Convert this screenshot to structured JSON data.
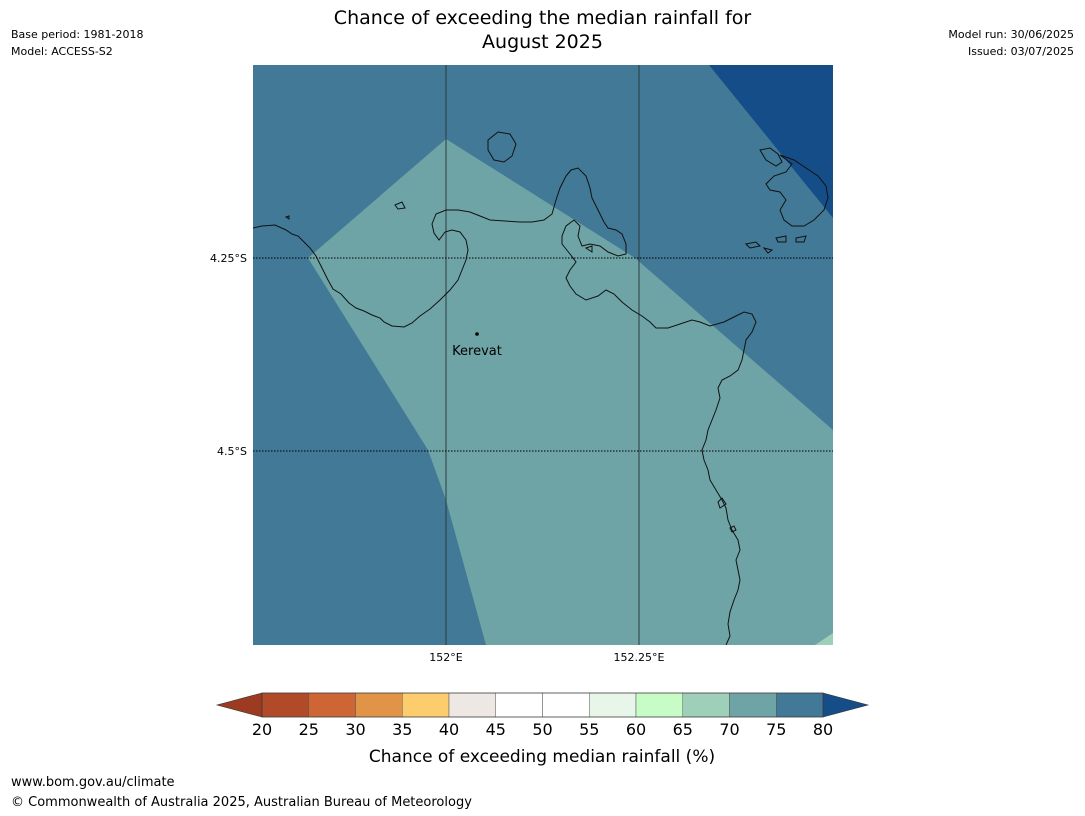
{
  "title_line1": "Chance of exceeding the median rainfall for",
  "title_line2": "August 2025",
  "meta_left": [
    "Base period: 1981-2018",
    "Model: ACCESS-S2"
  ],
  "meta_right": [
    "Model run: 30/06/2025",
    "Issued: 03/07/2025"
  ],
  "map": {
    "lat_labels": [
      "4.25°S",
      "4.5°S"
    ],
    "lon_labels": [
      "152°E",
      "152.25°E"
    ],
    "place": "Kerevat",
    "colors": {
      "band_75_80": "#417997",
      "band_70_75": "#6fa4a6",
      "band_80_plus": "#154d88",
      "band_65_70": "#9ecfb9"
    }
  },
  "colorbar": {
    "ticks": [
      "20",
      "25",
      "30",
      "35",
      "40",
      "45",
      "50",
      "55",
      "60",
      "65",
      "70",
      "75",
      "80"
    ],
    "colors": [
      "#b04a28",
      "#cd6534",
      "#e19447",
      "#fdcc6d",
      "#ede8e3",
      "#ffffff",
      "#ffffff",
      "#e8f6ea",
      "#c7fcc7",
      "#9ecfb9",
      "#6fa4a6",
      "#417997"
    ],
    "under_color": "#9c3b21",
    "over_color": "#154d88",
    "label": "Chance of exceeding median rainfall (%)"
  },
  "footer": {
    "url": "www.bom.gov.au/climate",
    "copyright": "© Commonwealth of Australia 2025, Australian Bureau of Meteorology"
  }
}
